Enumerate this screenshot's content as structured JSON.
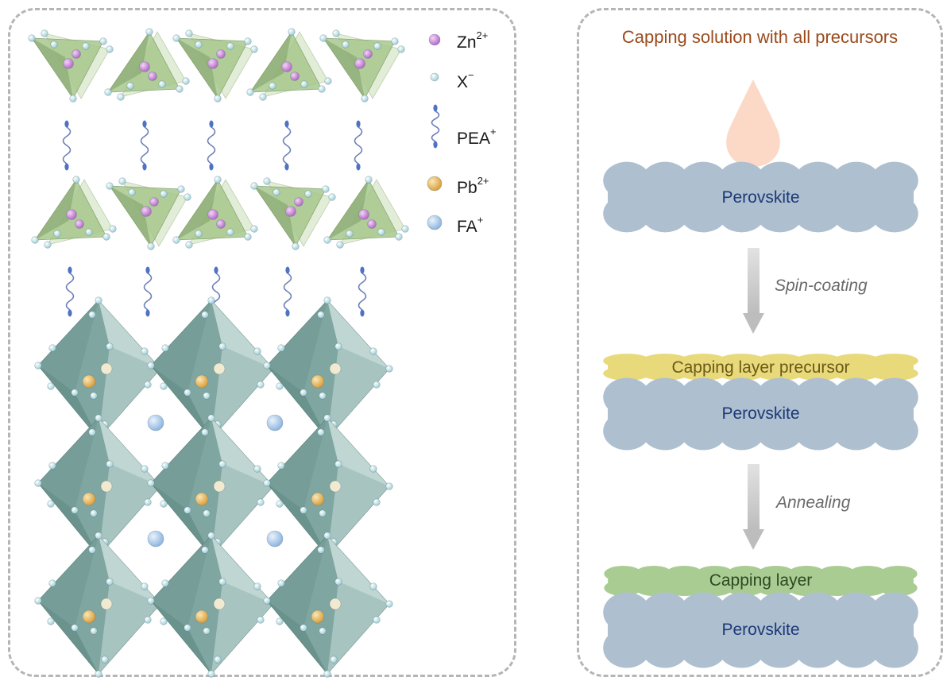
{
  "legend": {
    "items": [
      {
        "base": "Zn",
        "sup": "2+",
        "color": "#c77fd6"
      },
      {
        "base": "X",
        "sup": "−",
        "color": "#cfe8ee"
      },
      {
        "base": "PEA",
        "sup": "+",
        "color": "#5b7dc4"
      },
      {
        "base": "Pb",
        "sup": "2+",
        "color": "#e5b556"
      },
      {
        "base": "FA",
        "sup": "+",
        "color": "#a9c9ec"
      }
    ]
  },
  "process": {
    "title": "Capping solution with all precursors",
    "perovskite_label": "Perovskite",
    "step1": "Spin-coating",
    "precursor_label": "Capping layer precursor",
    "step2": "Annealing",
    "capping_label": "Capping layer"
  },
  "colors": {
    "perovskite": "#aebfcf",
    "precursor": "#e8d97a",
    "capping": "#a9cc93",
    "droplet": "#fcd9c6",
    "octahedron": "#7fa6a0",
    "tetrahedron": "#a8c88e",
    "arrow": "#c9c9c9"
  }
}
